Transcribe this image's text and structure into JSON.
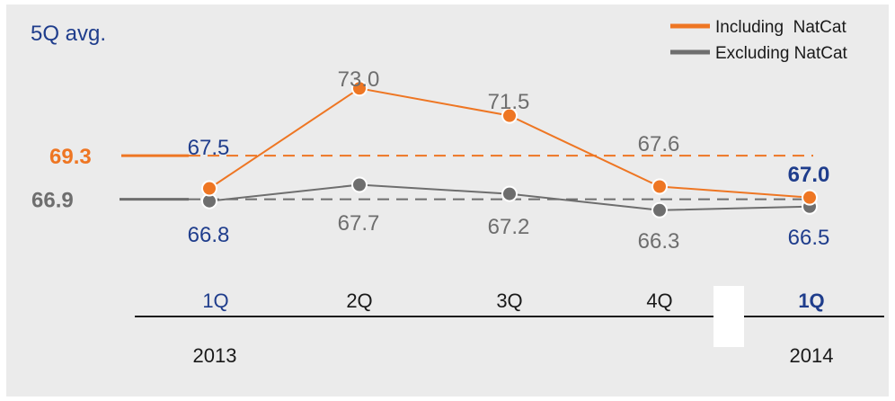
{
  "chart_data": {
    "type": "line",
    "title": "5Q avg.",
    "categories": [
      "1Q",
      "2Q",
      "3Q",
      "4Q",
      "1Q"
    ],
    "years": [
      {
        "label": "2013",
        "category_index": 0
      },
      {
        "label": "2014",
        "category_index": 4
      }
    ],
    "series": [
      {
        "name": "Including  NatCat",
        "color": "#ee7623",
        "values": [
          67.5,
          73.0,
          71.5,
          67.6,
          67.0
        ],
        "avg": 69.3,
        "avg_label": "69.3"
      },
      {
        "name": "Excluding NatCat",
        "color": "#6e6e6e",
        "values": [
          66.8,
          67.7,
          67.2,
          66.3,
          66.5
        ],
        "avg": 66.9,
        "avg_label": "66.9"
      }
    ],
    "labels": {
      "including": [
        "67.5",
        "73.0",
        "71.5",
        "67.6",
        "67.0"
      ],
      "excluding": [
        "66.8",
        "67.7",
        "67.2",
        "66.3",
        "66.5"
      ]
    },
    "legend_position": "top-right",
    "grid": false,
    "ylim": [
      65.4,
      74.4
    ]
  },
  "colors": {
    "background": "#ebebeb",
    "orange": "#ee7623",
    "gray": "#6e6e6e",
    "blue": "#1f3d8c",
    "black": "#1a1a1a"
  }
}
